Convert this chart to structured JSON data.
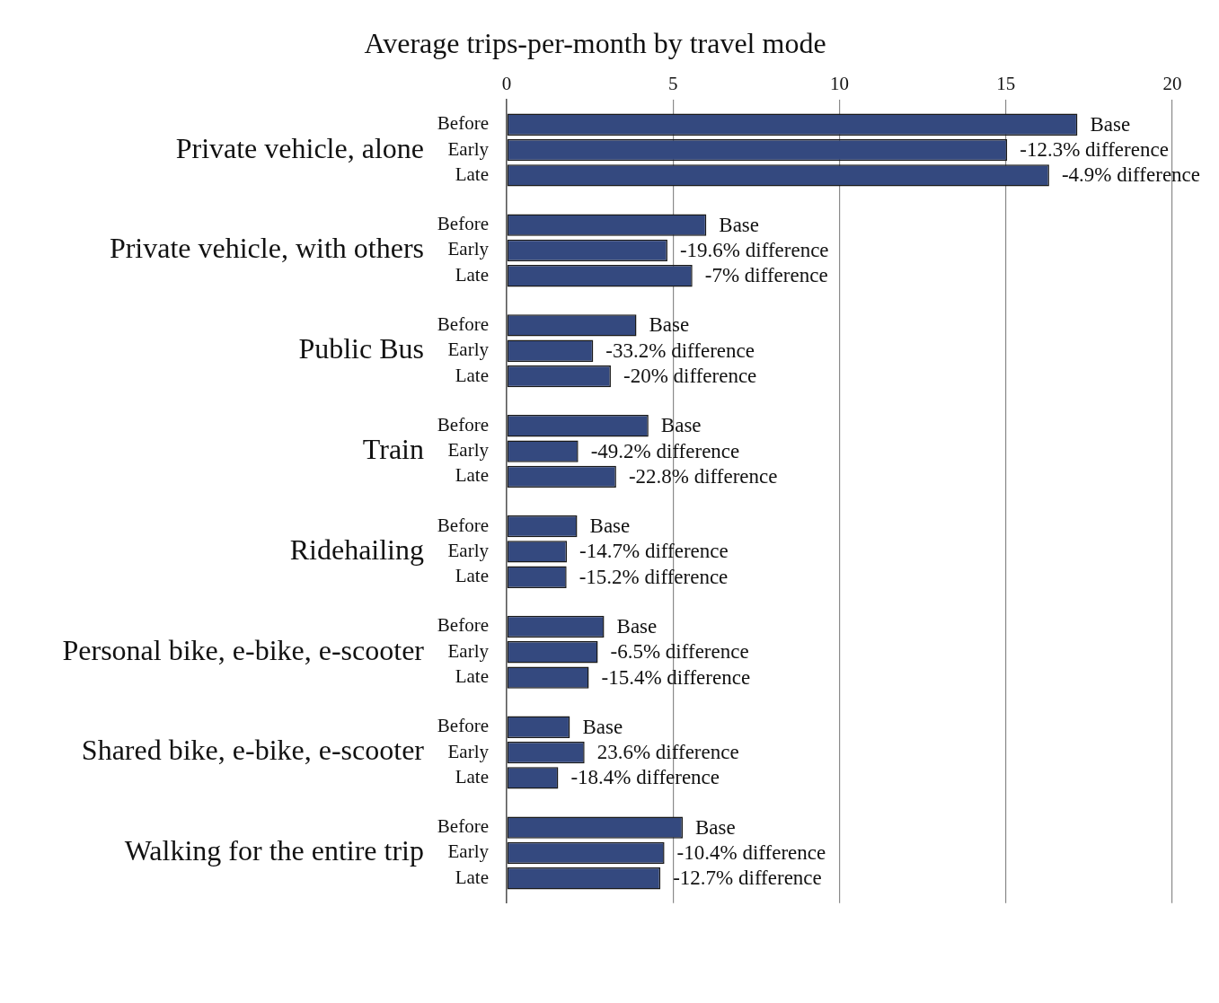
{
  "chart_data": {
    "type": "bar",
    "orientation": "horizontal",
    "title": "Average trips-per-month by travel mode",
    "categories": [
      "Private vehicle, alone",
      "Private vehicle, with others",
      "Public Bus",
      "Train",
      "Ridehailing",
      "Personal bike, e-bike, e-scooter",
      "Shared bike, e-bike, e-scooter",
      "Walking for the entire trip"
    ],
    "series": [
      {
        "name": "Before",
        "color": "#34497f",
        "values": [
          17.15,
          6.0,
          3.9,
          4.26,
          2.12,
          2.93,
          1.9,
          5.29
        ]
      },
      {
        "name": "Early",
        "color": "#34497f",
        "values": [
          15.04,
          4.83,
          2.6,
          2.15,
          1.81,
          2.74,
          2.34,
          4.74
        ]
      },
      {
        "name": "Late",
        "color": "#34497f",
        "values": [
          16.3,
          5.58,
          3.13,
          3.29,
          1.8,
          2.47,
          1.55,
          4.62
        ]
      }
    ],
    "annotations": [
      {
        "text": "Base",
        "x": 17.15
      },
      {
        "text": "Base",
        "x": 6.0
      },
      {
        "text": "Base",
        "x": 3.9
      },
      {
        "text": "Base",
        "x": 4.26
      },
      {
        "text": "Base",
        "x": 2.12
      },
      {
        "text": "Base",
        "x": 2.93
      },
      {
        "text": "Base",
        "x": 1.9
      },
      {
        "text": "Base",
        "x": 5.29
      },
      {
        "text": "-12.3% difference",
        "x": 15.04
      },
      {
        "text": "-19.6% difference",
        "x": 4.83
      },
      {
        "text": "-33.2% difference",
        "x": 2.6
      },
      {
        "text": "-49.2% difference",
        "x": 2.15
      },
      {
        "text": "-14.7% difference",
        "x": 1.81
      },
      {
        "text": "-6.5% difference",
        "x": 2.74
      },
      {
        "text": "23.6% difference",
        "x": 2.34
      },
      {
        "text": "-10.4% difference",
        "x": 4.74
      },
      {
        "text": "-4.9% difference",
        "x": 16.3
      },
      {
        "text": "-7% difference",
        "x": 5.58
      },
      {
        "text": "-20% difference",
        "x": 3.13
      },
      {
        "text": "-22.8% difference",
        "x": 3.29
      },
      {
        "text": "-15.2% difference",
        "x": 1.8
      },
      {
        "text": "-15.4% difference",
        "x": 2.47
      },
      {
        "text": "-18.4% difference",
        "x": 1.55
      },
      {
        "text": "-12.7% difference",
        "x": 4.62
      }
    ],
    "xlim": [
      0,
      20
    ],
    "xticks": [
      0,
      5,
      10,
      15,
      20
    ],
    "grid": "x",
    "legend": false
  }
}
